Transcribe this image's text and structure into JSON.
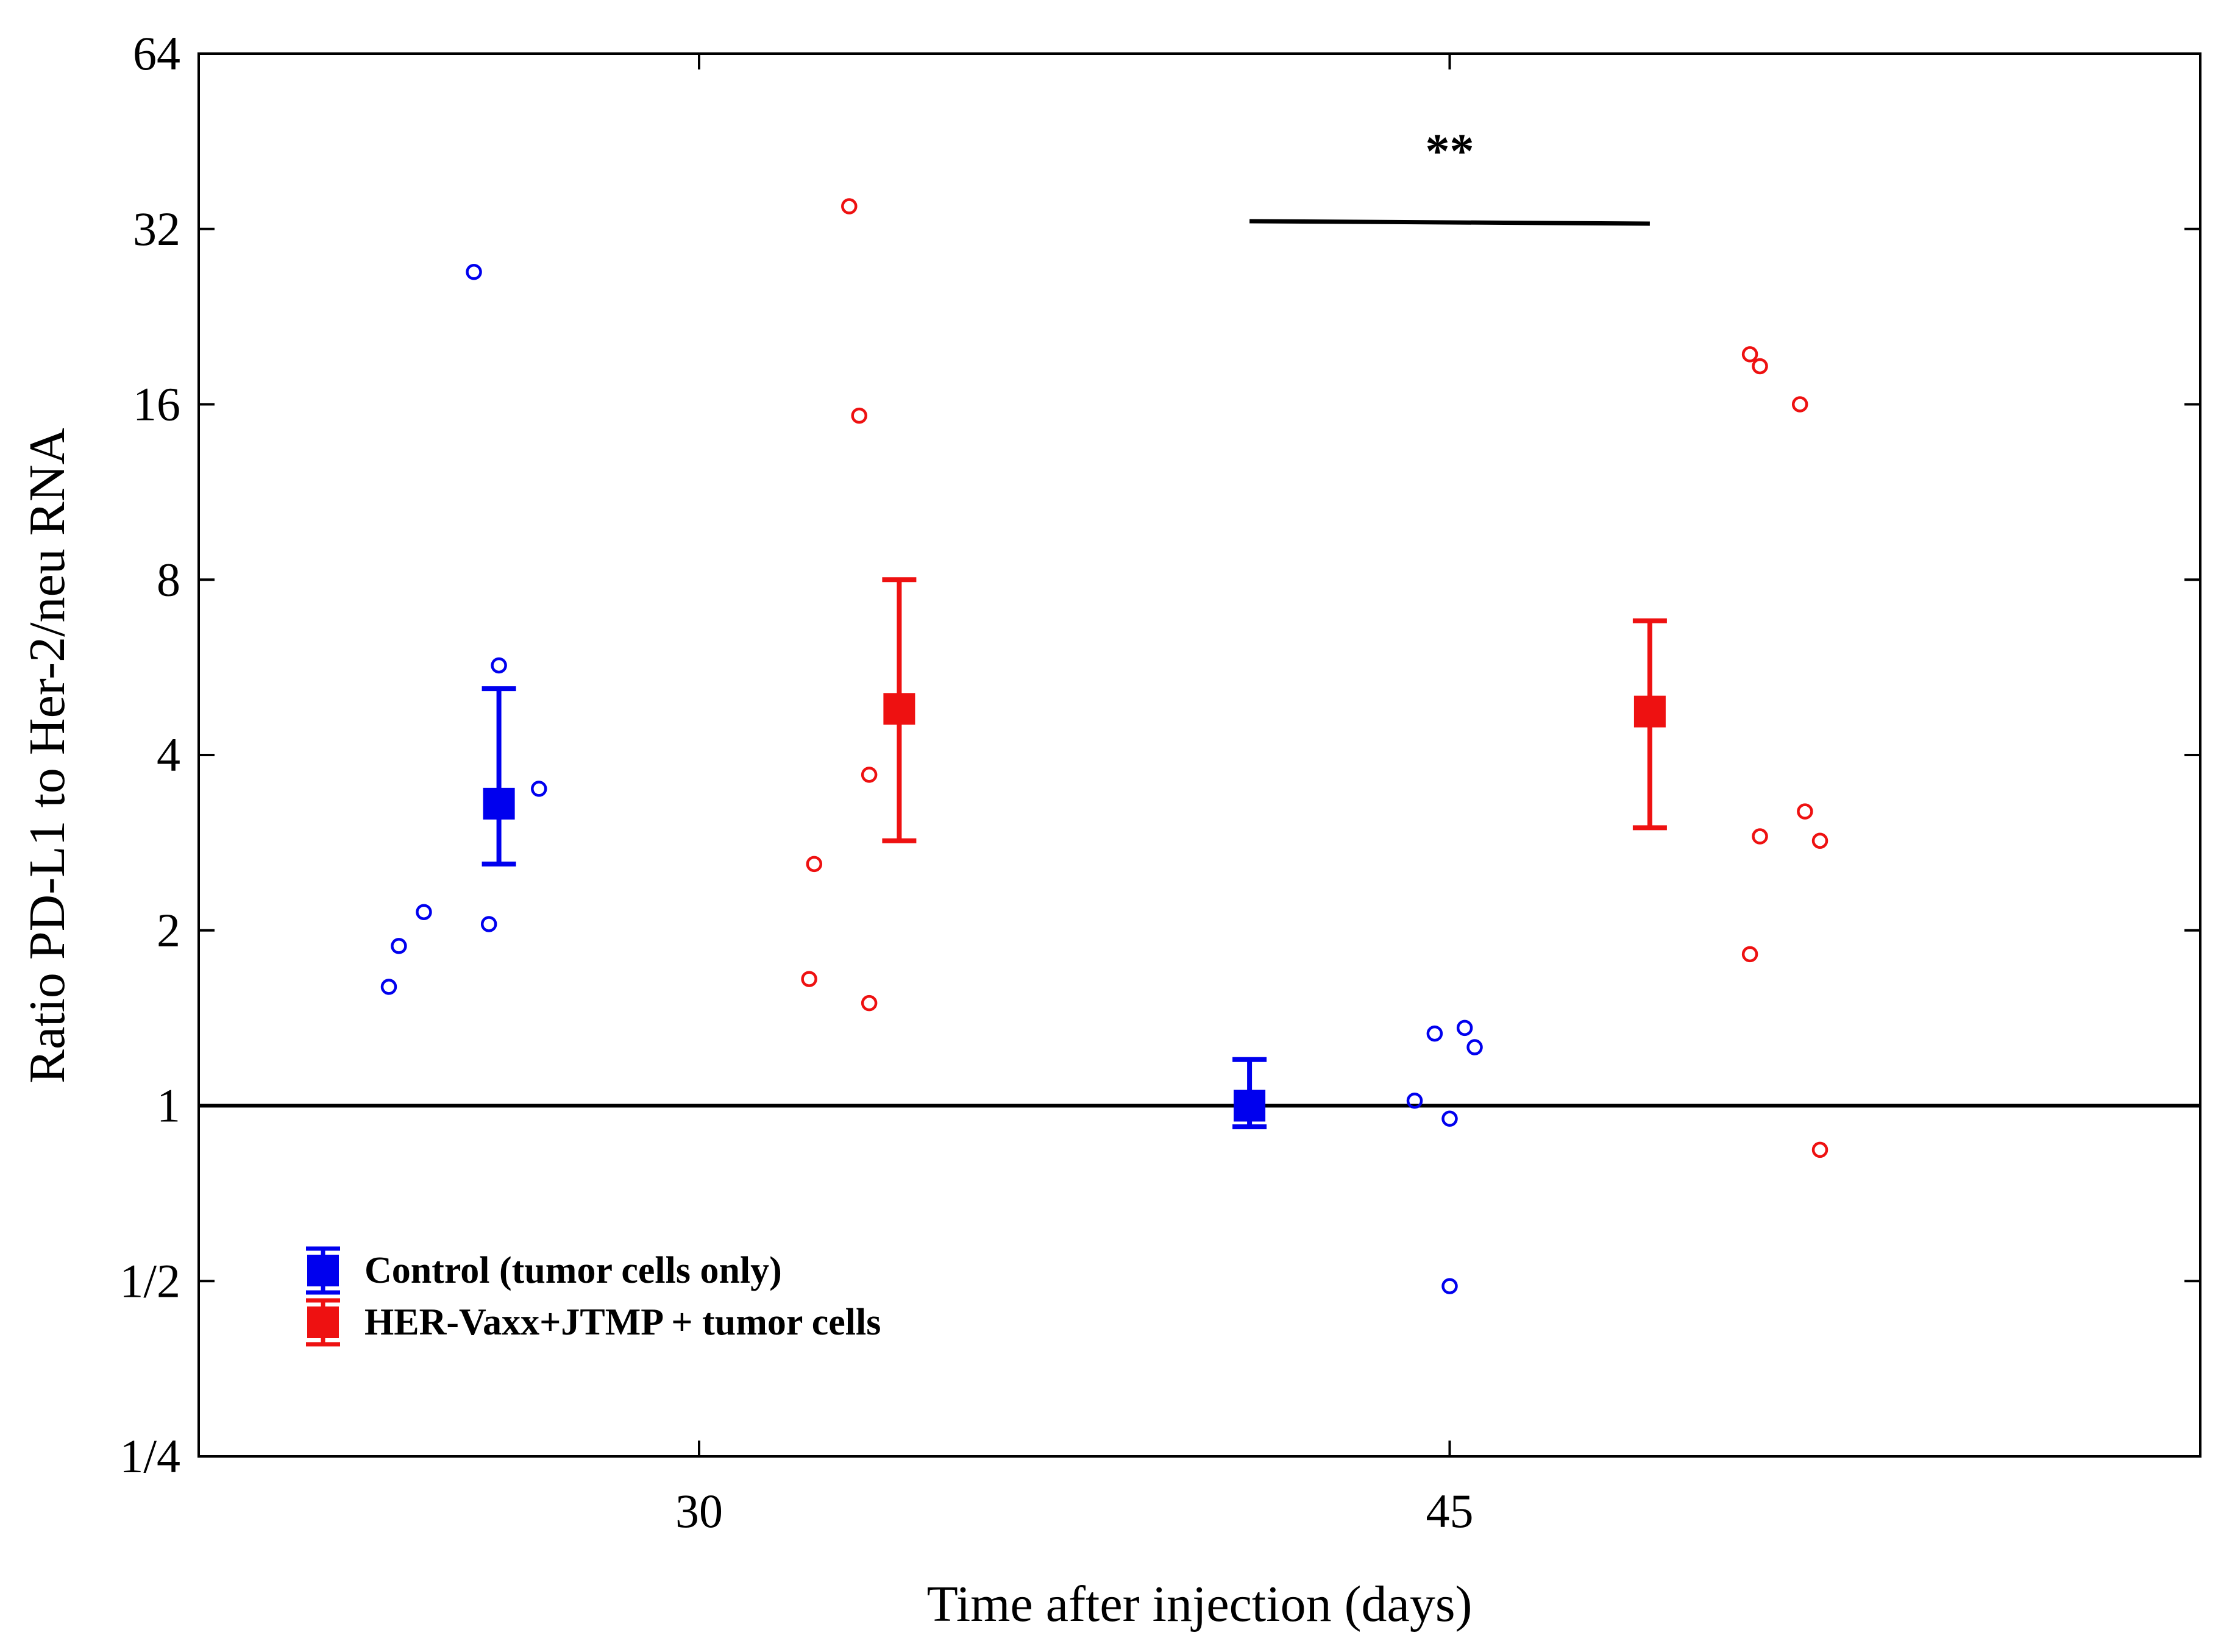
{
  "chart_data": {
    "type": "scatter",
    "title": "",
    "xlabel": "Time after injection (days)",
    "ylabel": "Ratio PD-L1 to Her-2/neu RNA",
    "y_scale": "log2",
    "ylim": [
      0.25,
      64
    ],
    "y_ticks": [
      {
        "value": 0.25,
        "label": "1/4"
      },
      {
        "value": 0.5,
        "label": "1/2"
      },
      {
        "value": 1,
        "label": "1"
      },
      {
        "value": 2,
        "label": "2"
      },
      {
        "value": 4,
        "label": "4"
      },
      {
        "value": 8,
        "label": "8"
      },
      {
        "value": 16,
        "label": "16"
      },
      {
        "value": 32,
        "label": "32"
      },
      {
        "value": 64,
        "label": "64"
      }
    ],
    "xlim": [
      20,
      60
    ],
    "x_ticks": [
      {
        "value": 30,
        "label": "30"
      },
      {
        "value": 45,
        "label": "45"
      }
    ],
    "reference_line_y": 1,
    "legend_position": "bottom-left",
    "series": [
      {
        "name": "Control (tumor cells only)",
        "color": "#0000ee",
        "groups": [
          {
            "day": 30,
            "mean": 3.3,
            "err_low": 2.6,
            "err_high": 5.2,
            "points": [
              {
                "x": 25.5,
                "y": 27
              },
              {
                "x": 26.0,
                "y": 5.7
              },
              {
                "x": 26.8,
                "y": 3.5
              },
              {
                "x": 24.5,
                "y": 2.15
              },
              {
                "x": 25.8,
                "y": 2.05
              },
              {
                "x": 24.0,
                "y": 1.88
              },
              {
                "x": 23.8,
                "y": 1.6
              }
            ]
          },
          {
            "day": 45,
            "mean": 1.0,
            "err_low": 0.92,
            "err_high": 1.2,
            "points": [
              {
                "x": 44.7,
                "y": 1.33
              },
              {
                "x": 45.3,
                "y": 1.36
              },
              {
                "x": 45.5,
                "y": 1.26
              },
              {
                "x": 44.3,
                "y": 1.02
              },
              {
                "x": 45.0,
                "y": 0.95
              },
              {
                "x": 45.0,
                "y": 0.49
              }
            ]
          }
        ]
      },
      {
        "name": "HER-Vaxx+JTMP + tumor cells",
        "color": "#ee1111",
        "groups": [
          {
            "day": 30,
            "mean": 4.8,
            "err_low": 2.85,
            "err_high": 8.0,
            "points": [
              {
                "x": 33.0,
                "y": 35
              },
              {
                "x": 33.2,
                "y": 15.3
              },
              {
                "x": 33.4,
                "y": 3.7
              },
              {
                "x": 32.3,
                "y": 2.6
              },
              {
                "x": 32.2,
                "y": 1.65
              },
              {
                "x": 33.4,
                "y": 1.5
              }
            ]
          },
          {
            "day": 45,
            "mean": 4.75,
            "err_low": 3.0,
            "err_high": 6.8,
            "points": [
              {
                "x": 51.0,
                "y": 19.5
              },
              {
                "x": 51.2,
                "y": 18.6
              },
              {
                "x": 52.0,
                "y": 16.0
              },
              {
                "x": 52.1,
                "y": 3.2
              },
              {
                "x": 51.2,
                "y": 2.9
              },
              {
                "x": 52.4,
                "y": 2.85
              },
              {
                "x": 51.0,
                "y": 1.82
              },
              {
                "x": 52.4,
                "y": 0.84
              }
            ]
          }
        ]
      }
    ],
    "annotations": [
      {
        "text": "**",
        "between": "day 45 Control vs HER-Vaxx+JTMP",
        "y": 33
      }
    ]
  }
}
